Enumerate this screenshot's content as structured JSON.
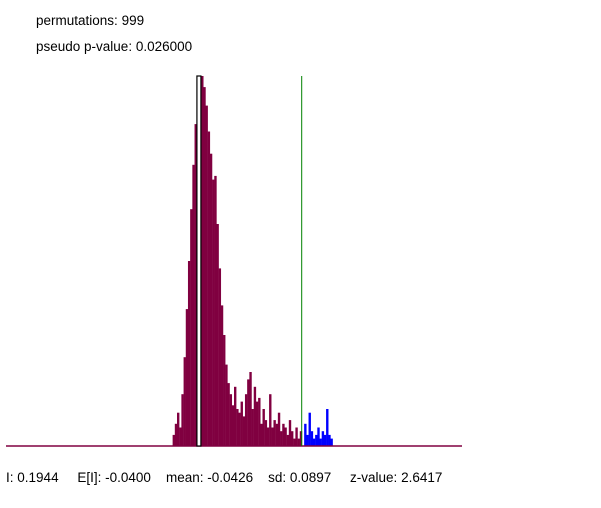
{
  "header": {
    "permutations_label": "permutations:",
    "permutations_value": "999",
    "pvalue_label": "pseudo p-value:",
    "pvalue_value": "0.026000"
  },
  "stats": {
    "i_label": "I:",
    "i_value": "0.1944",
    "ei_label": "E[I]:",
    "ei_value": "-0.0400",
    "mean_label": "mean:",
    "mean_value": "-0.0426",
    "sd_label": "sd:",
    "sd_value": "0.0897",
    "z_label": "z-value:",
    "z_value": "2.6417"
  },
  "colors": {
    "histogram_fill": "#800040",
    "tail_fill": "#0000ff",
    "observed_line": "#008000",
    "expected_box": "#000000",
    "baseline": "#800040"
  },
  "chart_data": {
    "type": "histogram",
    "title": "",
    "xlabel": "",
    "ylabel": "",
    "permutations": 999,
    "pseudo_p_value": 0.026,
    "observed_I": 0.1944,
    "expected_I": -0.04,
    "mean": -0.0426,
    "sd": 0.0897,
    "z_value": 2.6417,
    "xlim": [
      -0.48,
      0.56
    ],
    "ylim": [
      0,
      1
    ],
    "reference_lines": [
      {
        "name": "observed",
        "x": 0.1944,
        "color": "#008000"
      },
      {
        "name": "expected",
        "x": -0.04,
        "color": "#000000"
      }
    ],
    "bins": {
      "x": [
        -0.1,
        -0.095,
        -0.09,
        -0.085,
        -0.08,
        -0.075,
        -0.07,
        -0.065,
        -0.06,
        -0.055,
        -0.05,
        -0.045,
        -0.04,
        -0.035,
        -0.03,
        -0.025,
        -0.02,
        -0.015,
        -0.01,
        -0.005,
        0.0,
        0.005,
        0.01,
        0.015,
        0.02,
        0.025,
        0.03,
        0.035,
        0.04,
        0.045,
        0.05,
        0.055,
        0.06,
        0.065,
        0.07,
        0.075,
        0.08,
        0.085,
        0.09,
        0.095,
        0.1,
        0.105,
        0.11,
        0.115,
        0.12,
        0.125,
        0.13,
        0.135,
        0.14,
        0.145,
        0.15,
        0.155,
        0.16,
        0.165,
        0.17,
        0.175,
        0.18,
        0.185,
        0.19,
        0.2,
        0.205,
        0.21,
        0.215,
        0.22,
        0.225,
        0.23,
        0.235,
        0.24,
        0.245,
        0.25,
        0.255,
        0.26
      ],
      "counts": [
        0.03,
        0.06,
        0.09,
        0.05,
        0.14,
        0.24,
        0.37,
        0.5,
        0.64,
        0.76,
        0.87,
        0.95,
        0.99,
        1.0,
        0.97,
        0.92,
        0.85,
        0.79,
        0.72,
        0.73,
        0.6,
        0.48,
        0.38,
        0.3,
        0.22,
        0.17,
        0.14,
        0.11,
        0.16,
        0.1,
        0.09,
        0.12,
        0.08,
        0.14,
        0.18,
        0.2,
        0.1,
        0.16,
        0.12,
        0.13,
        0.06,
        0.1,
        0.07,
        0.05,
        0.14,
        0.05,
        0.07,
        0.06,
        0.09,
        0.04,
        0.06,
        0.05,
        0.03,
        0.07,
        0.04,
        0.02,
        0.05,
        0.02,
        0.04,
        0.06,
        0.03,
        0.09,
        0.04,
        0.02,
        0.03,
        0.05,
        0.02,
        0.04,
        0.03,
        0.1,
        0.03,
        0.02
      ],
      "tail_from_x": 0.1944
    }
  }
}
